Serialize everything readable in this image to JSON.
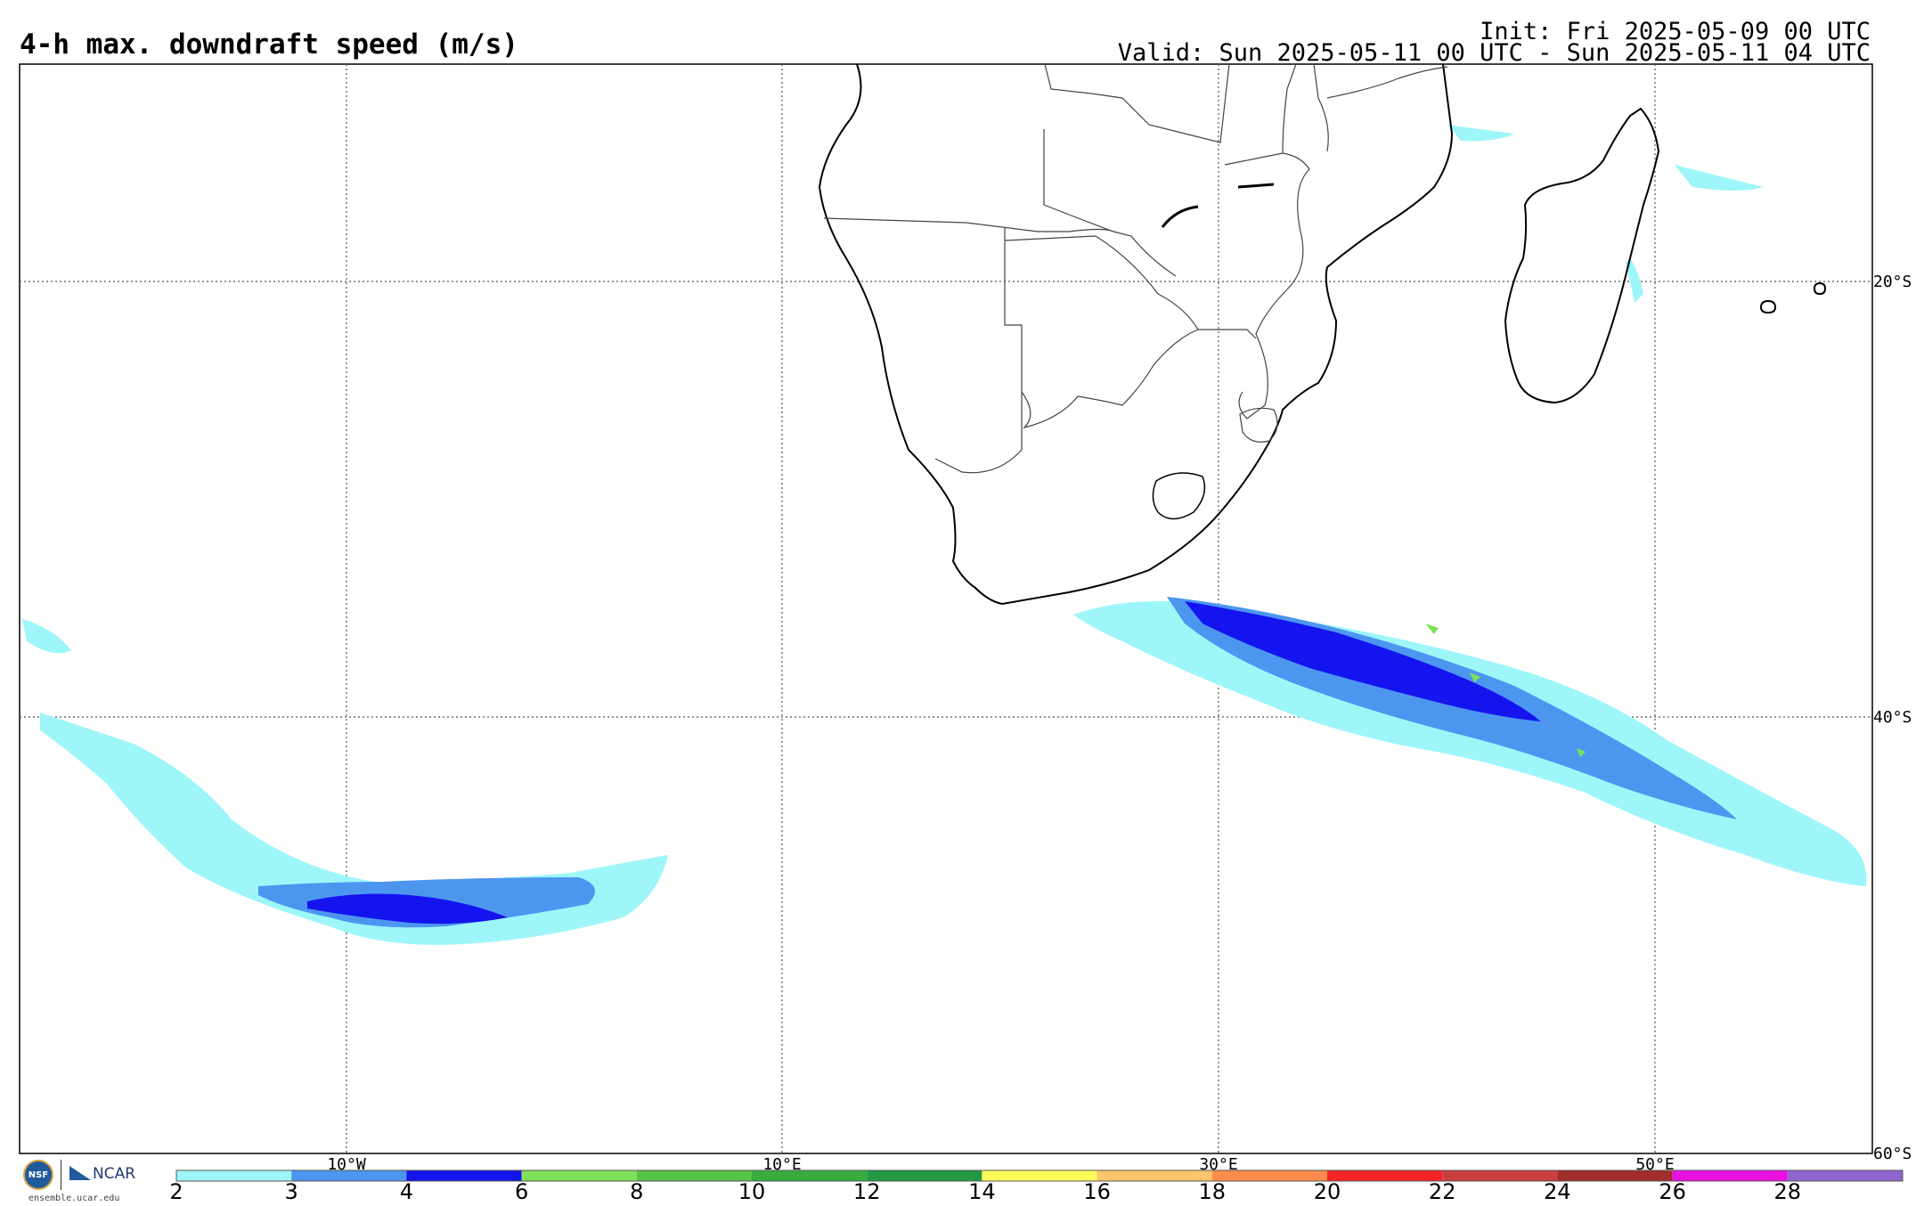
{
  "header": {
    "title": "4-h max. downdraft speed (m/s)",
    "init": "Init: Fri 2025-05-09 00 UTC",
    "valid": "Valid: Sun 2025-05-11 00 UTC - Sun 2025-05-11 04 UTC"
  },
  "map": {
    "longitude_labels": [
      "10°W",
      "10°E",
      "30°E",
      "50°E"
    ],
    "latitude_labels": [
      "20°S",
      "40°S",
      "60°S"
    ],
    "gridlines": "dotted"
  },
  "colorbar": {
    "tick_labels": [
      "2",
      "3",
      "4",
      "6",
      "8",
      "10",
      "12",
      "14",
      "16",
      "18",
      "20",
      "22",
      "24",
      "26",
      "28"
    ],
    "colors": [
      "#9ff6f9",
      "#4d96f0",
      "#1414ef",
      "#7fe059",
      "#55c447",
      "#36ad3c",
      "#249944",
      "#fffd5a",
      "#fec46a",
      "#fc8c4c",
      "#f52226",
      "#cb3f3f",
      "#a12d2d",
      "#ea11e2",
      "#9065cf"
    ]
  },
  "logo": {
    "nsf": "NSF",
    "ncar": "NCAR",
    "url": "ensemble.ucar.edu"
  }
}
